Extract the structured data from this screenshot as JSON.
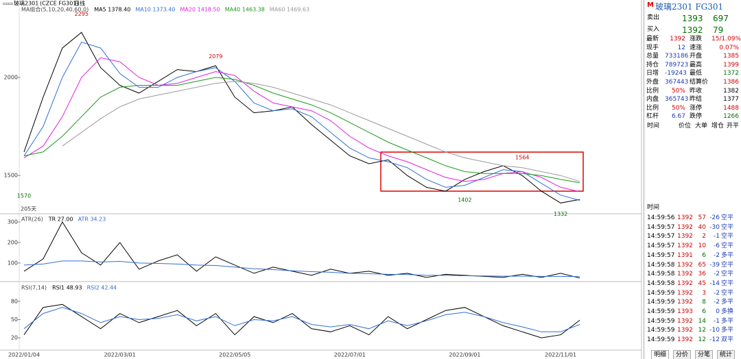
{
  "toolbar": {
    "symbol": "玻璃2301",
    "code": "(CZCE FG301)",
    "period": "日线"
  },
  "chart_data": [
    {
      "type": "line",
      "legend_title": "MA组合(5,10,20,40,60,0)",
      "note": "205天",
      "categories": [
        "2022/01/04",
        null,
        null,
        null,
        null,
        "2022/03/01",
        null,
        null,
        null,
        null,
        null,
        "2022/05/05",
        null,
        null,
        null,
        null,
        null,
        "2022/07/01",
        null,
        null,
        null,
        null,
        null,
        "2022/09/01",
        null,
        null,
        null,
        null,
        "2022/11/01",
        null
      ],
      "ylim": [
        1305,
        2325
      ],
      "yticks": [
        1500,
        2000
      ],
      "series": [
        {
          "name": "MA5 1378.40",
          "color": "#000000",
          "values": [
            1620,
            1900,
            2150,
            2230,
            2050,
            1960,
            1920,
            1980,
            2040,
            2030,
            2060,
            1900,
            1820,
            1830,
            1850,
            1760,
            1680,
            1600,
            1560,
            1580,
            1500,
            1440,
            1420,
            1480,
            1520,
            1550,
            1500,
            1420,
            1360,
            1378
          ]
        },
        {
          "name": "MA10 1373.40",
          "color": "#2f6fd6",
          "values": [
            1600,
            1750,
            2000,
            2180,
            2150,
            2020,
            1950,
            1950,
            2000,
            2030,
            2050,
            1980,
            1870,
            1830,
            1840,
            1800,
            1720,
            1640,
            1590,
            1570,
            1540,
            1480,
            1440,
            1450,
            1490,
            1530,
            1520,
            1460,
            1400,
            1373
          ]
        },
        {
          "name": "MA20 1418.50",
          "color": "#e020e0",
          "values": [
            1590,
            1650,
            1800,
            2000,
            2100,
            2080,
            2000,
            1960,
            1970,
            2000,
            2030,
            2010,
            1930,
            1870,
            1850,
            1830,
            1780,
            1700,
            1640,
            1600,
            1570,
            1530,
            1490,
            1470,
            1480,
            1510,
            1520,
            1490,
            1440,
            1418
          ]
        },
        {
          "name": "MA40 1463.38",
          "color": "#1a9a1a",
          "values": [
            1600,
            1620,
            1700,
            1800,
            1900,
            1950,
            1960,
            1960,
            1960,
            1980,
            2000,
            1990,
            1960,
            1920,
            1890,
            1860,
            1820,
            1770,
            1720,
            1670,
            1630,
            1590,
            1550,
            1520,
            1510,
            1510,
            1510,
            1500,
            1480,
            1463
          ]
        },
        {
          "name": "MA60 1469.63",
          "color": "#999999",
          "values": [
            null,
            null,
            1650,
            1720,
            1790,
            1850,
            1890,
            1910,
            1930,
            1950,
            1970,
            1980,
            1970,
            1950,
            1920,
            1890,
            1860,
            1820,
            1780,
            1740,
            1700,
            1660,
            1620,
            1590,
            1570,
            1550,
            1540,
            1520,
            1500,
            1470
          ]
        }
      ],
      "annotations": [
        {
          "index": 3,
          "value": 2295,
          "color": "#d00000"
        },
        {
          "index": 10,
          "value": 2079,
          "color": "#d00000"
        },
        {
          "index": 0,
          "value": 1570,
          "color": "#007000"
        },
        {
          "index": 23,
          "value": 1402,
          "color": "#007000"
        },
        {
          "index": 26,
          "value": 1564,
          "color": "#d00000"
        },
        {
          "index": 28,
          "value": 1332,
          "color": "#007000"
        }
      ]
    },
    {
      "type": "line",
      "legend_title": "ATR(26)",
      "ylim": [
        13,
        330
      ],
      "yticks": [
        100,
        200,
        300
      ],
      "series": [
        {
          "name": "TR 27.00",
          "color": "#000000",
          "values": [
            60,
            120,
            300,
            150,
            90,
            200,
            70,
            110,
            140,
            60,
            130,
            90,
            50,
            80,
            60,
            40,
            70,
            50,
            60,
            40,
            50,
            30,
            45,
            40,
            35,
            30,
            45,
            30,
            50,
            27
          ]
        },
        {
          "name": "ATR 34.23",
          "color": "#2f6fd6",
          "values": [
            90,
            95,
            110,
            110,
            105,
            108,
            100,
            98,
            95,
            90,
            88,
            80,
            72,
            68,
            62,
            58,
            55,
            50,
            48,
            45,
            44,
            40,
            40,
            38,
            37,
            36,
            36,
            35,
            35,
            34
          ]
        }
      ]
    },
    {
      "type": "line",
      "legend_title": "RSI(7,14)",
      "ylim": [
        1,
        108
      ],
      "yticks": [
        20,
        50,
        80
      ],
      "series": [
        {
          "name": "RSI1 48.93",
          "color": "#000000",
          "values": [
            25,
            70,
            75,
            55,
            35,
            60,
            45,
            55,
            65,
            40,
            60,
            25,
            55,
            45,
            60,
            35,
            30,
            40,
            25,
            55,
            35,
            50,
            65,
            70,
            55,
            40,
            30,
            20,
            25,
            49
          ]
        },
        {
          "name": "RSI2 42.44",
          "color": "#2f6fd6",
          "values": [
            35,
            60,
            70,
            60,
            45,
            55,
            50,
            52,
            58,
            48,
            55,
            40,
            50,
            48,
            55,
            42,
            38,
            42,
            35,
            48,
            40,
            48,
            58,
            62,
            55,
            45,
            38,
            30,
            30,
            42
          ]
        }
      ]
    }
  ],
  "panel": {
    "badge": "M",
    "title": "玻璃2301 FG301",
    "sell": {
      "label": "卖出",
      "price": "1393",
      "volume": "697"
    },
    "buy": {
      "label": "买入",
      "price": "1392",
      "volume": "79"
    },
    "quote": [
      {
        "label": "最新",
        "value": "1392",
        "color": "#d00000",
        "label2": "涨跌",
        "value2": "15/1.09%",
        "color2": "#d00000"
      },
      {
        "label": "现手",
        "value": "12",
        "color": "#1a3ab0",
        "label2": "速涨",
        "value2": "0.07%",
        "color2": "#d00000"
      },
      {
        "label": "总量",
        "value": "733186",
        "color": "#1a3ab0",
        "label2": "开盘",
        "value2": "1385",
        "color2": "#d00000"
      },
      {
        "label": "持仓",
        "value": "789723",
        "color": "#1a3ab0",
        "label2": "最高",
        "value2": "1399",
        "color2": "#d00000"
      },
      {
        "label": "日增",
        "value": "-19243",
        "color": "#1a3ab0",
        "label2": "最低",
        "value2": "1372",
        "color2": "#007000"
      },
      {
        "label": "外盘",
        "value": "367443",
        "color": "#1a3ab0",
        "label2": "结算价",
        "value2": "1386",
        "color2": "#d00000"
      },
      {
        "label": "比例",
        "value": "50%",
        "color": "#d00000",
        "label2": "昨收",
        "value2": "1382",
        "color2": "#000000"
      },
      {
        "label": "内盘",
        "value": "365743",
        "color": "#1a3ab0",
        "label2": "昨结",
        "value2": "1377",
        "color2": "#000000"
      },
      {
        "label": "比例",
        "value": "50%",
        "color": "#d00000",
        "label2": "涨停",
        "value2": "1488",
        "color2": "#d00000"
      },
      {
        "label": "杠杆",
        "value": "6.67",
        "color": "#1a3ab0",
        "label2": "跌停",
        "value2": "1266",
        "color2": "#007000"
      }
    ],
    "columns": [
      "时间",
      "价位",
      "大单",
      "增仓",
      "开平"
    ],
    "trades_header": "时间",
    "trades": [
      [
        "14:59:56",
        "1392",
        "57",
        "-26",
        "空平"
      ],
      [
        "14:59:57",
        "1392",
        "40",
        "-30",
        "空平"
      ],
      [
        "14:59:57",
        "1392",
        "2",
        "-1",
        "空平"
      ],
      [
        "14:59:57",
        "1392",
        "10",
        "-6",
        "空平"
      ],
      [
        "14:59:57",
        "1391",
        "6",
        "-2",
        "多平"
      ],
      [
        "14:59:58",
        "1392",
        "65",
        "-39",
        "空平"
      ],
      [
        "14:59:58",
        "1392",
        "36",
        "-2",
        "空平"
      ],
      [
        "14:59:58",
        "1392",
        "45",
        "-14",
        "空平"
      ],
      [
        "14:59:59",
        "1392",
        "3",
        "-2",
        "空平"
      ],
      [
        "14:59:59",
        "1392",
        "8",
        "-2",
        "多平"
      ],
      [
        "14:59:59",
        "1393",
        "6",
        "0",
        "多换"
      ],
      [
        "14:59:59",
        "1392",
        "14",
        "-1",
        "多平"
      ],
      [
        "14:59:59",
        "1392",
        "12",
        "-10",
        "多平"
      ],
      [
        "14:59:59",
        "1392",
        "12",
        "-12",
        "双平"
      ]
    ],
    "tabs": [
      "明细",
      "分价",
      "分笔",
      "统计"
    ]
  }
}
